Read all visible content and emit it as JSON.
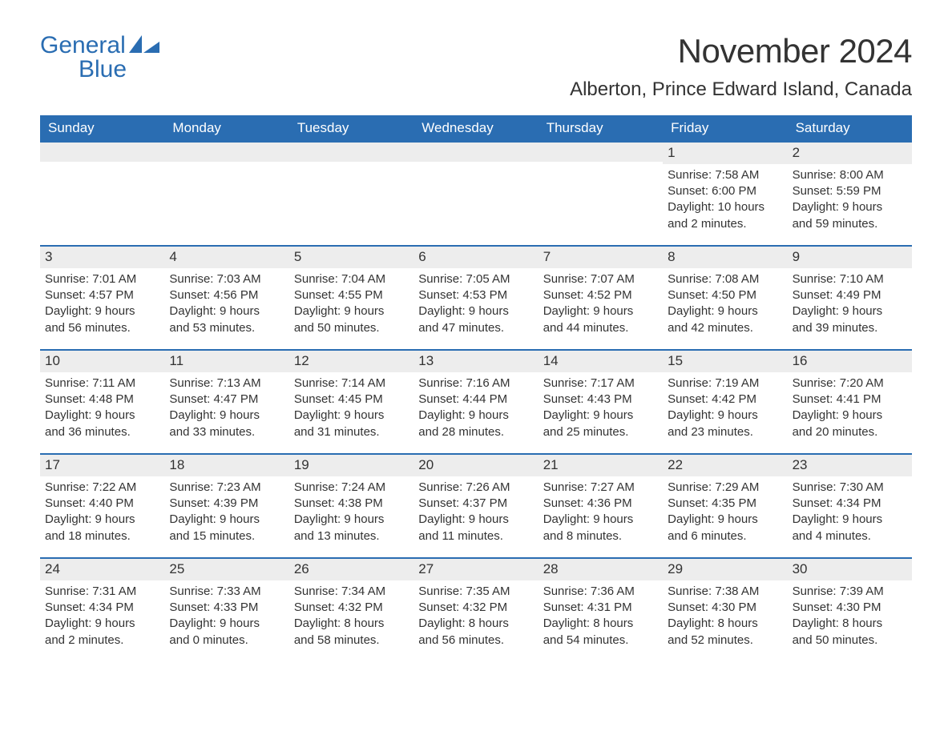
{
  "logo": {
    "word1": "General",
    "word2": "Blue"
  },
  "title": "November 2024",
  "location": "Alberton, Prince Edward Island, Canada",
  "colors": {
    "brand": "#2a6db2",
    "header_bg": "#2a6db2",
    "header_text": "#ffffff",
    "daynum_bg": "#ededed",
    "text": "#333333",
    "bg": "#ffffff"
  },
  "typography": {
    "title_fontsize": 42,
    "location_fontsize": 24,
    "weekday_fontsize": 17,
    "daynum_fontsize": 17,
    "body_fontsize": 15
  },
  "layout": {
    "type": "calendar",
    "columns": 7,
    "rows": 5,
    "week_border_color": "#2a6db2",
    "week_border_width": 2
  },
  "weekdays": [
    "Sunday",
    "Monday",
    "Tuesday",
    "Wednesday",
    "Thursday",
    "Friday",
    "Saturday"
  ],
  "weeks": [
    [
      null,
      null,
      null,
      null,
      null,
      {
        "n": "1",
        "sr": "Sunrise: 7:58 AM",
        "ss": "Sunset: 6:00 PM",
        "d1": "Daylight: 10 hours",
        "d2": "and 2 minutes."
      },
      {
        "n": "2",
        "sr": "Sunrise: 8:00 AM",
        "ss": "Sunset: 5:59 PM",
        "d1": "Daylight: 9 hours",
        "d2": "and 59 minutes."
      }
    ],
    [
      {
        "n": "3",
        "sr": "Sunrise: 7:01 AM",
        "ss": "Sunset: 4:57 PM",
        "d1": "Daylight: 9 hours",
        "d2": "and 56 minutes."
      },
      {
        "n": "4",
        "sr": "Sunrise: 7:03 AM",
        "ss": "Sunset: 4:56 PM",
        "d1": "Daylight: 9 hours",
        "d2": "and 53 minutes."
      },
      {
        "n": "5",
        "sr": "Sunrise: 7:04 AM",
        "ss": "Sunset: 4:55 PM",
        "d1": "Daylight: 9 hours",
        "d2": "and 50 minutes."
      },
      {
        "n": "6",
        "sr": "Sunrise: 7:05 AM",
        "ss": "Sunset: 4:53 PM",
        "d1": "Daylight: 9 hours",
        "d2": "and 47 minutes."
      },
      {
        "n": "7",
        "sr": "Sunrise: 7:07 AM",
        "ss": "Sunset: 4:52 PM",
        "d1": "Daylight: 9 hours",
        "d2": "and 44 minutes."
      },
      {
        "n": "8",
        "sr": "Sunrise: 7:08 AM",
        "ss": "Sunset: 4:50 PM",
        "d1": "Daylight: 9 hours",
        "d2": "and 42 minutes."
      },
      {
        "n": "9",
        "sr": "Sunrise: 7:10 AM",
        "ss": "Sunset: 4:49 PM",
        "d1": "Daylight: 9 hours",
        "d2": "and 39 minutes."
      }
    ],
    [
      {
        "n": "10",
        "sr": "Sunrise: 7:11 AM",
        "ss": "Sunset: 4:48 PM",
        "d1": "Daylight: 9 hours",
        "d2": "and 36 minutes."
      },
      {
        "n": "11",
        "sr": "Sunrise: 7:13 AM",
        "ss": "Sunset: 4:47 PM",
        "d1": "Daylight: 9 hours",
        "d2": "and 33 minutes."
      },
      {
        "n": "12",
        "sr": "Sunrise: 7:14 AM",
        "ss": "Sunset: 4:45 PM",
        "d1": "Daylight: 9 hours",
        "d2": "and 31 minutes."
      },
      {
        "n": "13",
        "sr": "Sunrise: 7:16 AM",
        "ss": "Sunset: 4:44 PM",
        "d1": "Daylight: 9 hours",
        "d2": "and 28 minutes."
      },
      {
        "n": "14",
        "sr": "Sunrise: 7:17 AM",
        "ss": "Sunset: 4:43 PM",
        "d1": "Daylight: 9 hours",
        "d2": "and 25 minutes."
      },
      {
        "n": "15",
        "sr": "Sunrise: 7:19 AM",
        "ss": "Sunset: 4:42 PM",
        "d1": "Daylight: 9 hours",
        "d2": "and 23 minutes."
      },
      {
        "n": "16",
        "sr": "Sunrise: 7:20 AM",
        "ss": "Sunset: 4:41 PM",
        "d1": "Daylight: 9 hours",
        "d2": "and 20 minutes."
      }
    ],
    [
      {
        "n": "17",
        "sr": "Sunrise: 7:22 AM",
        "ss": "Sunset: 4:40 PM",
        "d1": "Daylight: 9 hours",
        "d2": "and 18 minutes."
      },
      {
        "n": "18",
        "sr": "Sunrise: 7:23 AM",
        "ss": "Sunset: 4:39 PM",
        "d1": "Daylight: 9 hours",
        "d2": "and 15 minutes."
      },
      {
        "n": "19",
        "sr": "Sunrise: 7:24 AM",
        "ss": "Sunset: 4:38 PM",
        "d1": "Daylight: 9 hours",
        "d2": "and 13 minutes."
      },
      {
        "n": "20",
        "sr": "Sunrise: 7:26 AM",
        "ss": "Sunset: 4:37 PM",
        "d1": "Daylight: 9 hours",
        "d2": "and 11 minutes."
      },
      {
        "n": "21",
        "sr": "Sunrise: 7:27 AM",
        "ss": "Sunset: 4:36 PM",
        "d1": "Daylight: 9 hours",
        "d2": "and 8 minutes."
      },
      {
        "n": "22",
        "sr": "Sunrise: 7:29 AM",
        "ss": "Sunset: 4:35 PM",
        "d1": "Daylight: 9 hours",
        "d2": "and 6 minutes."
      },
      {
        "n": "23",
        "sr": "Sunrise: 7:30 AM",
        "ss": "Sunset: 4:34 PM",
        "d1": "Daylight: 9 hours",
        "d2": "and 4 minutes."
      }
    ],
    [
      {
        "n": "24",
        "sr": "Sunrise: 7:31 AM",
        "ss": "Sunset: 4:34 PM",
        "d1": "Daylight: 9 hours",
        "d2": "and 2 minutes."
      },
      {
        "n": "25",
        "sr": "Sunrise: 7:33 AM",
        "ss": "Sunset: 4:33 PM",
        "d1": "Daylight: 9 hours",
        "d2": "and 0 minutes."
      },
      {
        "n": "26",
        "sr": "Sunrise: 7:34 AM",
        "ss": "Sunset: 4:32 PM",
        "d1": "Daylight: 8 hours",
        "d2": "and 58 minutes."
      },
      {
        "n": "27",
        "sr": "Sunrise: 7:35 AM",
        "ss": "Sunset: 4:32 PM",
        "d1": "Daylight: 8 hours",
        "d2": "and 56 minutes."
      },
      {
        "n": "28",
        "sr": "Sunrise: 7:36 AM",
        "ss": "Sunset: 4:31 PM",
        "d1": "Daylight: 8 hours",
        "d2": "and 54 minutes."
      },
      {
        "n": "29",
        "sr": "Sunrise: 7:38 AM",
        "ss": "Sunset: 4:30 PM",
        "d1": "Daylight: 8 hours",
        "d2": "and 52 minutes."
      },
      {
        "n": "30",
        "sr": "Sunrise: 7:39 AM",
        "ss": "Sunset: 4:30 PM",
        "d1": "Daylight: 8 hours",
        "d2": "and 50 minutes."
      }
    ]
  ]
}
